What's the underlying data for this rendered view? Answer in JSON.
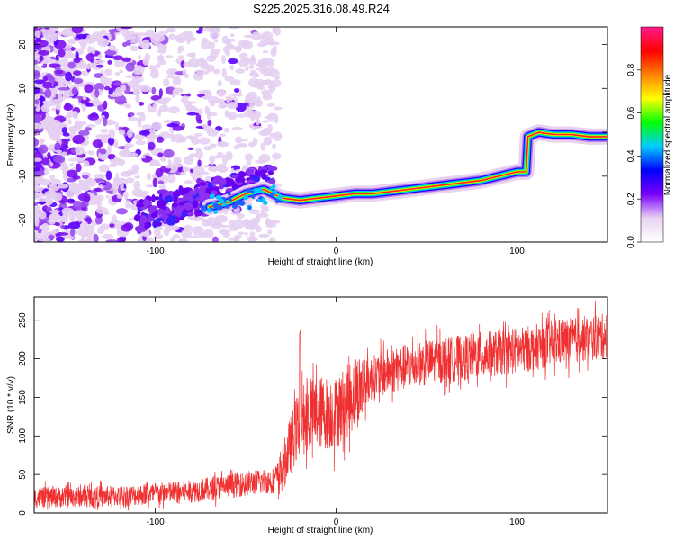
{
  "title": "S225.2025.316.08.49.R24",
  "chart_data": [
    {
      "type": "heatmap",
      "xlabel": "Height of straight line (km)",
      "ylabel": "Frequency (Hz)",
      "xlim": [
        -167,
        150
      ],
      "ylim": [
        -25,
        24
      ],
      "x_ticks": [
        -100,
        0,
        100
      ],
      "y_ticks": [
        -20,
        -10,
        0,
        10,
        20
      ],
      "colorbar": {
        "label": "Normalized spectral amplitude",
        "range": [
          0.0,
          1.0
        ],
        "ticks": [
          0.0,
          0.2,
          0.4,
          0.6,
          0.8
        ],
        "tick_labels": [
          "0.0",
          "0.2",
          "0.4",
          "0.6",
          "0.8"
        ],
        "colormap": [
          "#ffffff",
          "#e8d2f0",
          "#7b00ff",
          "#0000ff",
          "#00ccff",
          "#00ff00",
          "#ffff00",
          "#ff8000",
          "#ff0000",
          "#ff1a8c"
        ]
      },
      "ridge": [
        {
          "x": -70,
          "y": -17
        },
        {
          "x": -60,
          "y": -16
        },
        {
          "x": -50,
          "y": -14
        },
        {
          "x": -40,
          "y": -13
        },
        {
          "x": -30,
          "y": -15
        },
        {
          "x": -20,
          "y": -15.5
        },
        {
          "x": -10,
          "y": -15
        },
        {
          "x": 0,
          "y": -14.5
        },
        {
          "x": 10,
          "y": -14
        },
        {
          "x": 20,
          "y": -14
        },
        {
          "x": 30,
          "y": -13.5
        },
        {
          "x": 40,
          "y": -13
        },
        {
          "x": 50,
          "y": -12.5
        },
        {
          "x": 60,
          "y": -12
        },
        {
          "x": 70,
          "y": -11.5
        },
        {
          "x": 80,
          "y": -11
        },
        {
          "x": 90,
          "y": -10
        },
        {
          "x": 100,
          "y": -9
        },
        {
          "x": 105,
          "y": -9
        },
        {
          "x": 106,
          "y": -1
        },
        {
          "x": 112,
          "y": 0
        },
        {
          "x": 120,
          "y": -0.5
        },
        {
          "x": 130,
          "y": -0.5
        },
        {
          "x": 140,
          "y": -1
        },
        {
          "x": 150,
          "y": -1
        }
      ]
    },
    {
      "type": "line",
      "xlabel": "Height of straight line (km)",
      "ylabel": "SNR (10 * v/v)",
      "xlim": [
        -167,
        150
      ],
      "ylim": [
        0,
        280
      ],
      "x_ticks": [
        -100,
        0,
        100
      ],
      "y_ticks": [
        0,
        50,
        100,
        150,
        200,
        250
      ],
      "color": "#f03030",
      "trend": [
        {
          "x": -167,
          "y": 20
        },
        {
          "x": -120,
          "y": 22
        },
        {
          "x": -80,
          "y": 28
        },
        {
          "x": -60,
          "y": 35
        },
        {
          "x": -45,
          "y": 40
        },
        {
          "x": -35,
          "y": 42
        },
        {
          "x": -30,
          "y": 55
        },
        {
          "x": -25,
          "y": 90
        },
        {
          "x": -20,
          "y": 120
        },
        {
          "x": -10,
          "y": 130
        },
        {
          "x": 0,
          "y": 130
        },
        {
          "x": 10,
          "y": 155
        },
        {
          "x": 20,
          "y": 175
        },
        {
          "x": 30,
          "y": 185
        },
        {
          "x": 50,
          "y": 195
        },
        {
          "x": 80,
          "y": 205
        },
        {
          "x": 100,
          "y": 210
        },
        {
          "x": 120,
          "y": 220
        },
        {
          "x": 150,
          "y": 230
        }
      ],
      "spike": {
        "x": -20,
        "y": 238
      },
      "noise_amplitude": 30
    }
  ]
}
